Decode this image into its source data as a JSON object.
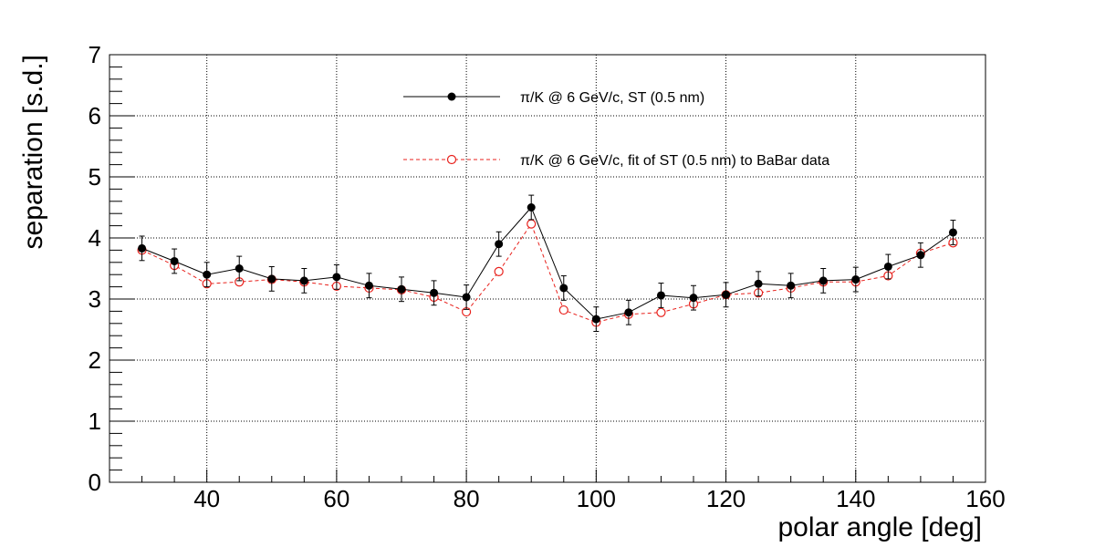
{
  "chart_data": {
    "type": "scatter",
    "title": "",
    "xlabel": "polar angle [deg]",
    "ylabel": "separation [s.d.]",
    "xlim": [
      25,
      160
    ],
    "ylim": [
      0,
      7
    ],
    "x_ticks": [
      "40",
      "60",
      "80",
      "100",
      "120",
      "140",
      "160"
    ],
    "y_ticks": [
      "0",
      "1",
      "2",
      "3",
      "4",
      "5",
      "6",
      "7"
    ],
    "grid": true,
    "legend_position": "top-center",
    "series": [
      {
        "name": "π/K @ 6 GeV/c, ST (0.5 nm)",
        "color": "#000000",
        "marker": "filled-circle",
        "line": "solid",
        "x": [
          30,
          35,
          40,
          45,
          50,
          55,
          60,
          65,
          70,
          75,
          80,
          85,
          90,
          95,
          100,
          105,
          110,
          115,
          120,
          125,
          130,
          135,
          140,
          145,
          150,
          155
        ],
        "values": [
          3.83,
          3.62,
          3.4,
          3.5,
          3.33,
          3.3,
          3.36,
          3.22,
          3.16,
          3.1,
          3.03,
          3.9,
          4.5,
          3.18,
          2.67,
          2.78,
          3.06,
          3.02,
          3.07,
          3.25,
          3.22,
          3.3,
          3.32,
          3.53,
          3.72,
          4.09
        ],
        "errors": [
          0.2,
          0.2,
          0.2,
          0.2,
          0.2,
          0.2,
          0.2,
          0.2,
          0.2,
          0.2,
          0.2,
          0.2,
          0.2,
          0.2,
          0.2,
          0.2,
          0.2,
          0.2,
          0.2,
          0.2,
          0.2,
          0.2,
          0.2,
          0.2,
          0.2,
          0.2
        ]
      },
      {
        "name": "π/K @ 6 GeV/c, fit of ST (0.5 nm) to BaBar data",
        "color": "#e8211c",
        "marker": "open-circle",
        "line": "dashed",
        "x": [
          30,
          35,
          40,
          45,
          50,
          55,
          60,
          65,
          70,
          75,
          80,
          85,
          90,
          95,
          100,
          105,
          110,
          115,
          120,
          125,
          130,
          135,
          140,
          145,
          150,
          155
        ],
        "values": [
          3.8,
          3.55,
          3.25,
          3.28,
          3.32,
          3.28,
          3.21,
          3.18,
          3.15,
          3.03,
          2.79,
          3.45,
          4.23,
          2.82,
          2.62,
          2.75,
          2.78,
          2.92,
          3.07,
          3.1,
          3.18,
          3.28,
          3.28,
          3.38,
          3.75,
          3.92
        ]
      }
    ]
  }
}
